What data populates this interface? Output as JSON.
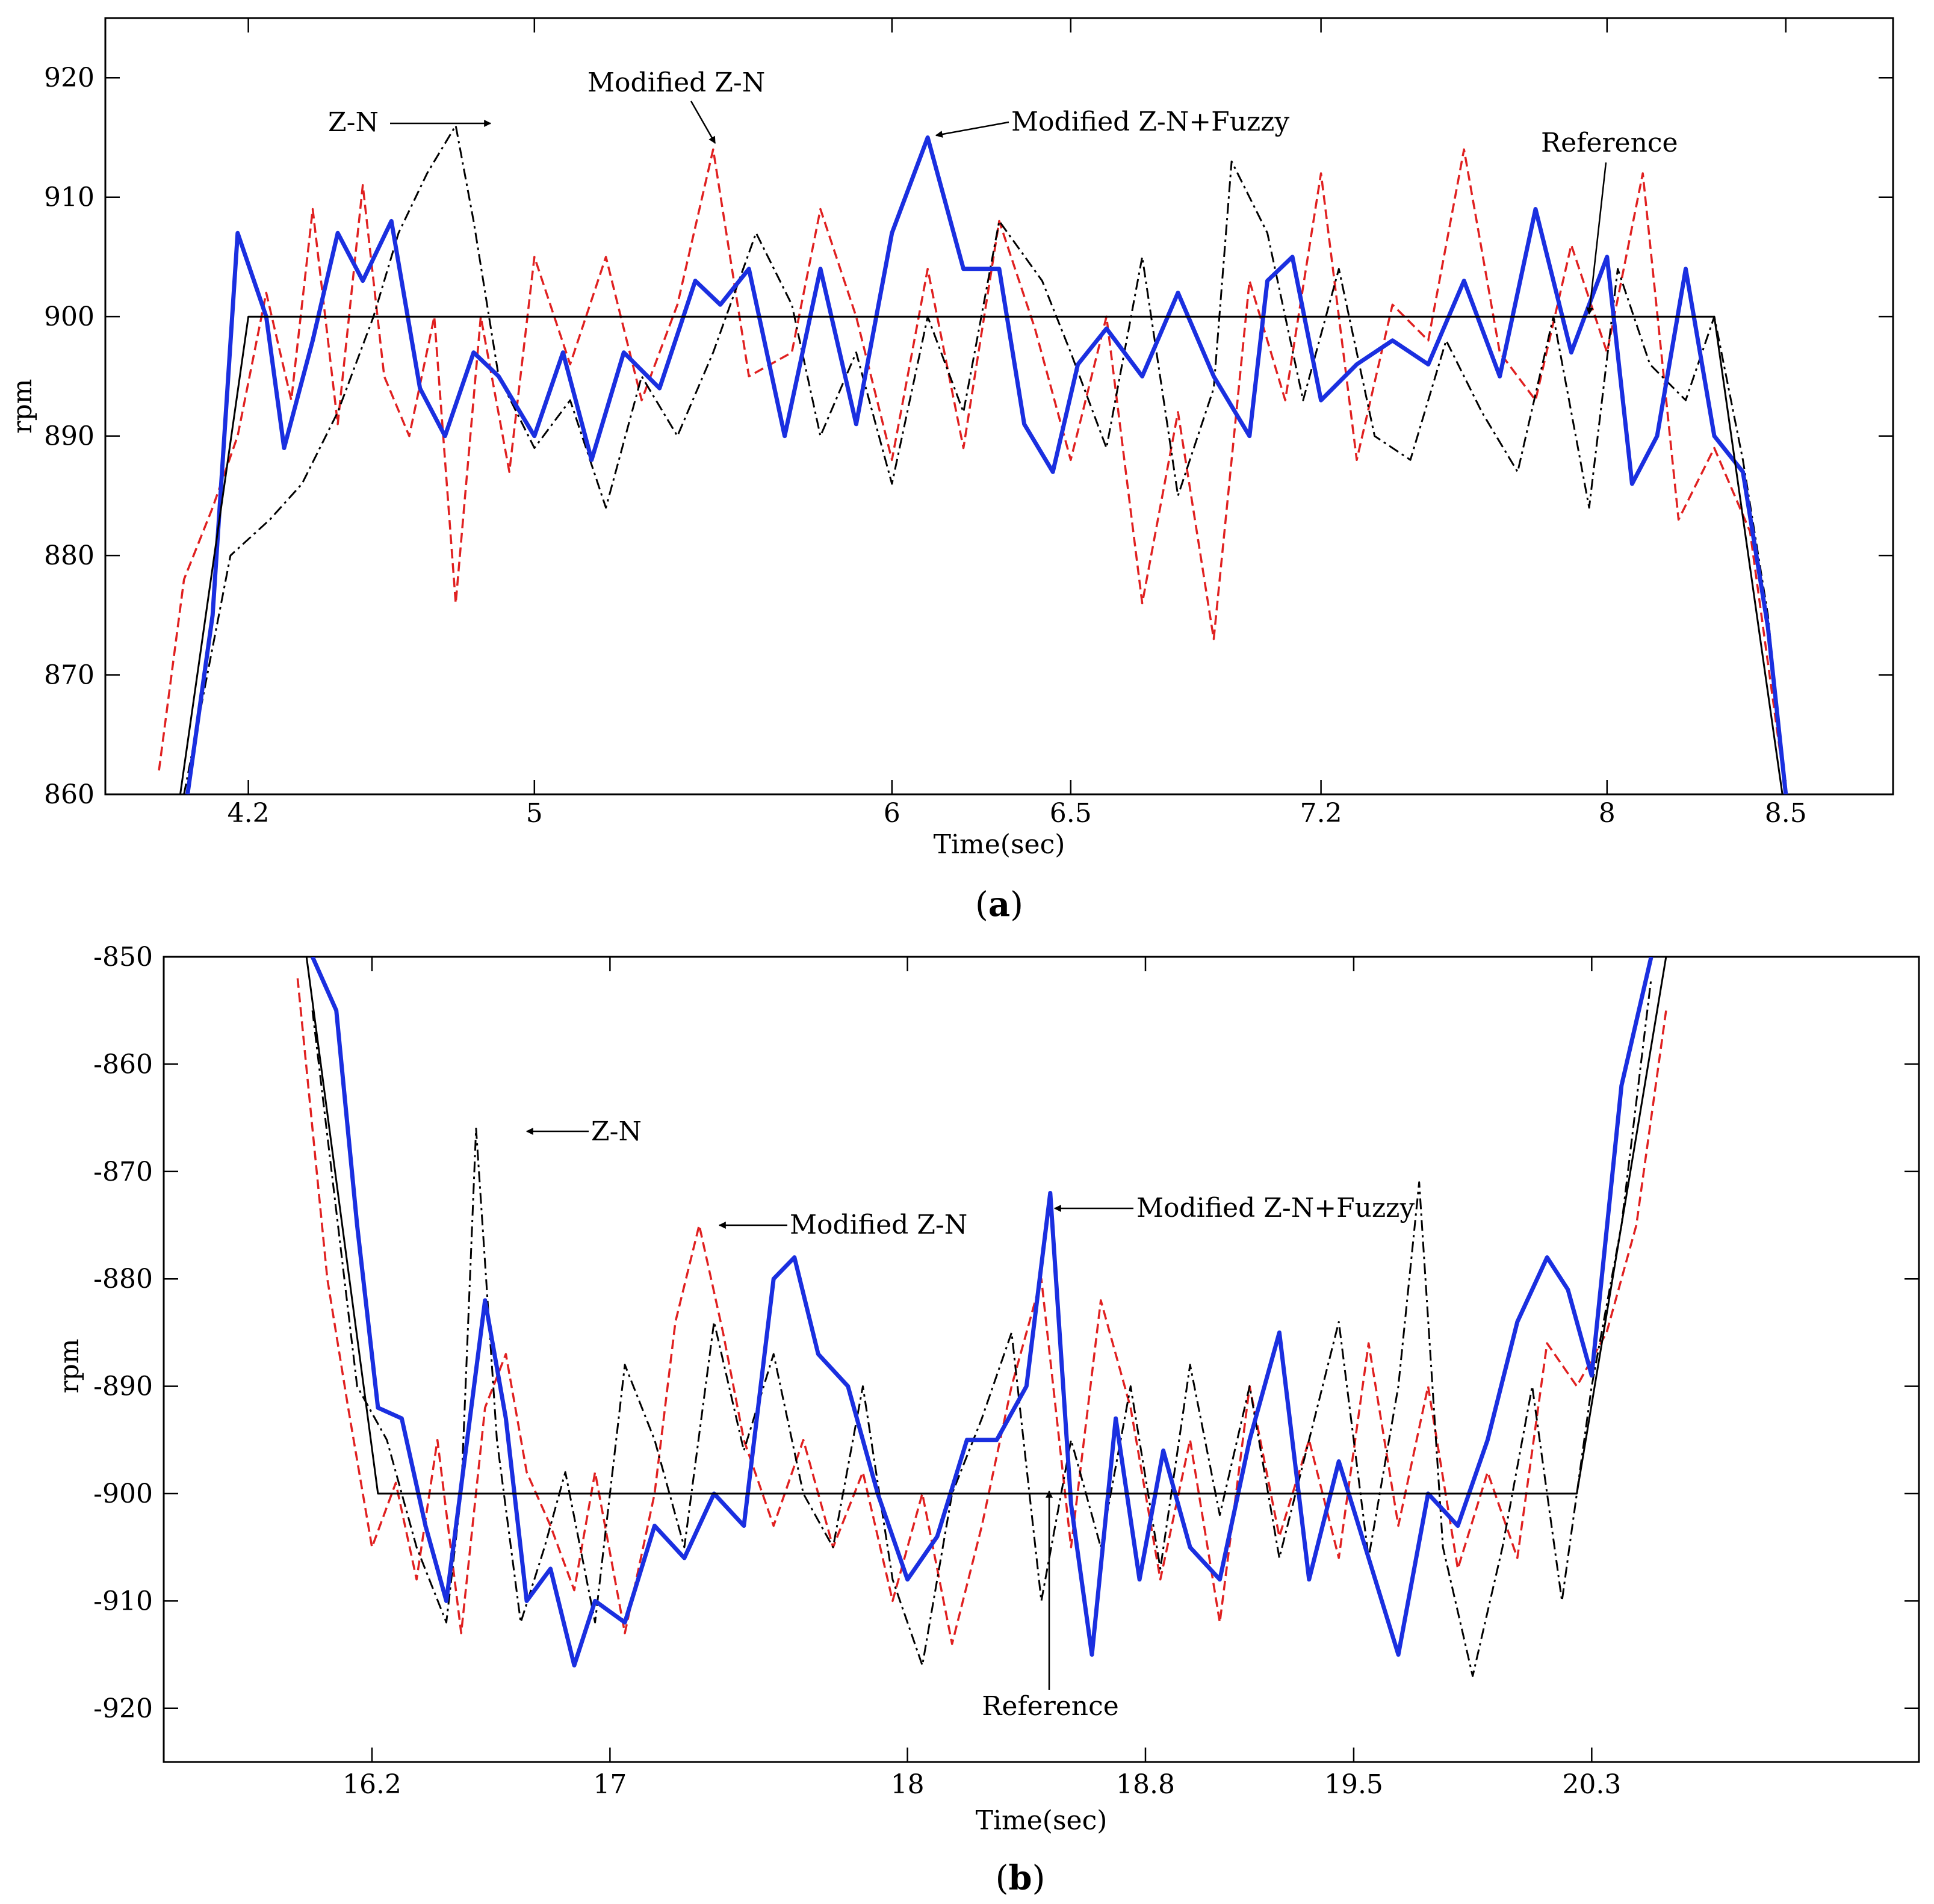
{
  "chart_data": [
    {
      "type": "line",
      "panel": "a",
      "caption_letter": "a",
      "title": "",
      "xlabel": "Time(sec)",
      "ylabel": "rpm",
      "xlim": [
        3.8,
        8.8
      ],
      "ylim": [
        860,
        925
      ],
      "xticks": [
        4.2,
        5,
        6,
        6.5,
        7.2,
        8,
        8.5
      ],
      "xtick_labels": [
        "4.2",
        "5",
        "6",
        "6.5",
        "7.2",
        "8",
        "8.5"
      ],
      "yticks": [
        860,
        870,
        880,
        890,
        900,
        910,
        920
      ],
      "ytick_labels": [
        "860",
        "870",
        "880",
        "890",
        "900",
        "910",
        "920"
      ],
      "grid": false,
      "series": [
        {
          "name": "Reference",
          "color": "#000000",
          "style": "solid",
          "x": [
            4.0,
            4.2,
            8.3,
            8.5
          ],
          "y": [
            858,
            900,
            900,
            858
          ]
        },
        {
          "name": "Z-N",
          "color": "#000000",
          "style": "dashdot",
          "x": [
            4.02,
            4.15,
            4.26,
            4.35,
            4.45,
            4.55,
            4.62,
            4.7,
            4.78,
            4.83,
            4.9,
            5.0,
            5.1,
            5.2,
            5.3,
            5.4,
            5.5,
            5.62,
            5.72,
            5.8,
            5.9,
            6.0,
            6.1,
            6.2,
            6.3,
            6.42,
            6.5,
            6.6,
            6.7,
            6.8,
            6.9,
            6.95,
            7.05,
            7.15,
            7.25,
            7.35,
            7.45,
            7.55,
            7.65,
            7.75,
            7.85,
            7.95,
            8.03,
            8.12,
            8.22,
            8.3,
            8.38,
            8.45,
            8.5
          ],
          "y": [
            860,
            880,
            883,
            886,
            892,
            900,
            907,
            912,
            916,
            908,
            895,
            889,
            893,
            884,
            895,
            890,
            897,
            907,
            901,
            890,
            897,
            886,
            900,
            892,
            908,
            903,
            897,
            889,
            905,
            885,
            894,
            913,
            907,
            893,
            904,
            890,
            888,
            898,
            892,
            887,
            900,
            884,
            904,
            896,
            893,
            900,
            888,
            875,
            860
          ]
        },
        {
          "name": "Modified Z-N",
          "color": "#e02020",
          "style": "dashed",
          "x": [
            3.95,
            4.02,
            4.1,
            4.17,
            4.25,
            4.32,
            4.38,
            4.45,
            4.52,
            4.58,
            4.65,
            4.72,
            4.78,
            4.85,
            4.93,
            5.0,
            5.1,
            5.2,
            5.3,
            5.4,
            5.5,
            5.6,
            5.72,
            5.8,
            5.9,
            6.0,
            6.1,
            6.2,
            6.3,
            6.4,
            6.5,
            6.6,
            6.7,
            6.8,
            6.9,
            7.0,
            7.1,
            7.2,
            7.3,
            7.4,
            7.5,
            7.6,
            7.7,
            7.8,
            7.9,
            8.0,
            8.1,
            8.2,
            8.3,
            8.4,
            8.5
          ],
          "y": [
            862,
            878,
            884,
            890,
            902,
            893,
            909,
            891,
            911,
            895,
            890,
            900,
            876,
            900,
            887,
            905,
            896,
            905,
            893,
            901,
            914,
            895,
            897,
            909,
            900,
            888,
            904,
            889,
            908,
            899,
            888,
            900,
            876,
            892,
            873,
            903,
            893,
            912,
            888,
            901,
            898,
            914,
            897,
            893,
            906,
            897,
            912,
            883,
            889,
            882,
            860
          ]
        },
        {
          "name": "Modified Z-N+Fuzzy",
          "color": "#1a2fe0",
          "style": "solid",
          "x": [
            4.03,
            4.1,
            4.17,
            4.25,
            4.3,
            4.38,
            4.45,
            4.52,
            4.6,
            4.68,
            4.75,
            4.83,
            4.9,
            5.0,
            5.08,
            5.16,
            5.25,
            5.35,
            5.45,
            5.52,
            5.6,
            5.7,
            5.8,
            5.9,
            6.0,
            6.1,
            6.2,
            6.3,
            6.37,
            6.45,
            6.52,
            6.6,
            6.7,
            6.8,
            6.9,
            7.0,
            7.05,
            7.12,
            7.2,
            7.3,
            7.4,
            7.5,
            7.6,
            7.7,
            7.8,
            7.9,
            8.0,
            8.07,
            8.14,
            8.22,
            8.3,
            8.38,
            8.45,
            8.5
          ],
          "y": [
            860,
            875,
            907,
            900,
            889,
            898,
            907,
            903,
            908,
            894,
            890,
            897,
            895,
            890,
            897,
            888,
            897,
            894,
            903,
            901,
            904,
            890,
            904,
            891,
            907,
            915,
            904,
            904,
            891,
            887,
            896,
            899,
            895,
            902,
            895,
            890,
            903,
            905,
            893,
            896,
            898,
            896,
            903,
            895,
            909,
            897,
            905,
            886,
            890,
            904,
            890,
            887,
            874,
            860
          ]
        }
      ],
      "annotations": [
        {
          "text": "Z-N"
        },
        {
          "text": "Modified  Z-N"
        },
        {
          "text": "Modified  Z-N+Fuzzy"
        },
        {
          "text": "Reference"
        }
      ]
    },
    {
      "type": "line",
      "panel": "b",
      "caption_letter": "b",
      "title": "",
      "xlabel": "Time(sec)",
      "ylabel": "rpm",
      "xlim": [
        15.5,
        21.4
      ],
      "ylim": [
        -925,
        -850
      ],
      "xticks": [
        16.2,
        17,
        18,
        18.8,
        19.5,
        20.3
      ],
      "xtick_labels": [
        "16.2",
        "17",
        "18",
        "18.8",
        "19.5",
        "20.3"
      ],
      "yticks": [
        -920,
        -910,
        -900,
        -890,
        -880,
        -870,
        -860,
        -850
      ],
      "ytick_labels": [
        "-920",
        "-910",
        "-900",
        "-890",
        "-880",
        "-870",
        "-860",
        "-850"
      ],
      "grid": false,
      "series": [
        {
          "name": "Reference",
          "color": "#000000",
          "style": "solid",
          "x": [
            15.98,
            16.22,
            20.25,
            20.55
          ],
          "y": [
            -850,
            -900,
            -900,
            -850
          ]
        },
        {
          "name": "Z-N",
          "color": "#000000",
          "style": "dashdot",
          "x": [
            16.0,
            16.15,
            16.25,
            16.35,
            16.45,
            16.5,
            16.55,
            16.62,
            16.7,
            16.78,
            16.85,
            16.95,
            17.05,
            17.15,
            17.25,
            17.35,
            17.45,
            17.55,
            17.65,
            17.75,
            17.85,
            17.95,
            18.05,
            18.15,
            18.25,
            18.35,
            18.45,
            18.55,
            18.65,
            18.75,
            18.85,
            18.95,
            19.05,
            19.15,
            19.25,
            19.35,
            19.45,
            19.55,
            19.65,
            19.72,
            19.8,
            19.9,
            20.0,
            20.1,
            20.2,
            20.3,
            20.4,
            20.5
          ],
          "y": [
            -855,
            -890,
            -895,
            -905,
            -912,
            -900,
            -866,
            -895,
            -912,
            -905,
            -898,
            -912,
            -888,
            -895,
            -905,
            -884,
            -896,
            -887,
            -900,
            -905,
            -890,
            -908,
            -916,
            -900,
            -893,
            -885,
            -910,
            -895,
            -905,
            -890,
            -907,
            -888,
            -902,
            -890,
            -906,
            -895,
            -884,
            -906,
            -890,
            -871,
            -905,
            -917,
            -905,
            -890,
            -910,
            -890,
            -875,
            -852
          ]
        },
        {
          "name": "Modified Z-N",
          "color": "#e02020",
          "style": "dashed",
          "x": [
            15.95,
            16.05,
            16.12,
            16.2,
            16.28,
            16.35,
            16.42,
            16.5,
            16.58,
            16.65,
            16.72,
            16.8,
            16.88,
            16.95,
            17.05,
            17.15,
            17.22,
            17.3,
            17.38,
            17.45,
            17.55,
            17.65,
            17.75,
            17.85,
            17.95,
            18.05,
            18.15,
            18.25,
            18.35,
            18.45,
            18.55,
            18.65,
            18.75,
            18.85,
            18.95,
            19.05,
            19.15,
            19.25,
            19.35,
            19.45,
            19.55,
            19.65,
            19.75,
            19.85,
            19.95,
            20.05,
            20.15,
            20.25,
            20.35,
            20.45,
            20.55
          ],
          "y": [
            -852,
            -880,
            -892,
            -905,
            -899,
            -908,
            -895,
            -913,
            -892,
            -887,
            -898,
            -903,
            -909,
            -898,
            -913,
            -900,
            -884,
            -875,
            -885,
            -895,
            -903,
            -895,
            -905,
            -898,
            -910,
            -900,
            -914,
            -903,
            -890,
            -880,
            -905,
            -882,
            -892,
            -908,
            -895,
            -912,
            -890,
            -904,
            -895,
            -906,
            -886,
            -903,
            -890,
            -907,
            -898,
            -906,
            -886,
            -890,
            -885,
            -875,
            -855
          ]
        },
        {
          "name": "Modified Z-N+Fuzzy",
          "color": "#1a2fe0",
          "style": "solid",
          "x": [
            16.0,
            16.08,
            16.15,
            16.22,
            16.3,
            16.38,
            16.45,
            16.52,
            16.58,
            16.65,
            16.72,
            16.8,
            16.88,
            16.95,
            17.05,
            17.15,
            17.25,
            17.35,
            17.45,
            17.55,
            17.62,
            17.7,
            17.8,
            17.9,
            18.0,
            18.1,
            18.2,
            18.3,
            18.4,
            18.48,
            18.55,
            18.62,
            18.7,
            18.78,
            18.86,
            18.95,
            19.05,
            19.15,
            19.25,
            19.35,
            19.45,
            19.55,
            19.65,
            19.75,
            19.85,
            19.95,
            20.05,
            20.15,
            20.22,
            20.3,
            20.4,
            20.5
          ],
          "y": [
            -850,
            -855,
            -875,
            -892,
            -893,
            -903,
            -910,
            -895,
            -882,
            -893,
            -910,
            -907,
            -916,
            -910,
            -912,
            -903,
            -906,
            -900,
            -903,
            -880,
            -878,
            -887,
            -890,
            -900,
            -908,
            -904,
            -895,
            -895,
            -890,
            -872,
            -901,
            -915,
            -893,
            -908,
            -896,
            -905,
            -908,
            -895,
            -885,
            -908,
            -897,
            -906,
            -915,
            -900,
            -903,
            -895,
            -884,
            -878,
            -881,
            -889,
            -862,
            -850
          ]
        }
      ],
      "annotations": [
        {
          "text": "Z-N"
        },
        {
          "text": "Modified  Z-N"
        },
        {
          "text": "Modified  Z-N+Fuzzy"
        },
        {
          "text": "Reference"
        }
      ]
    }
  ]
}
